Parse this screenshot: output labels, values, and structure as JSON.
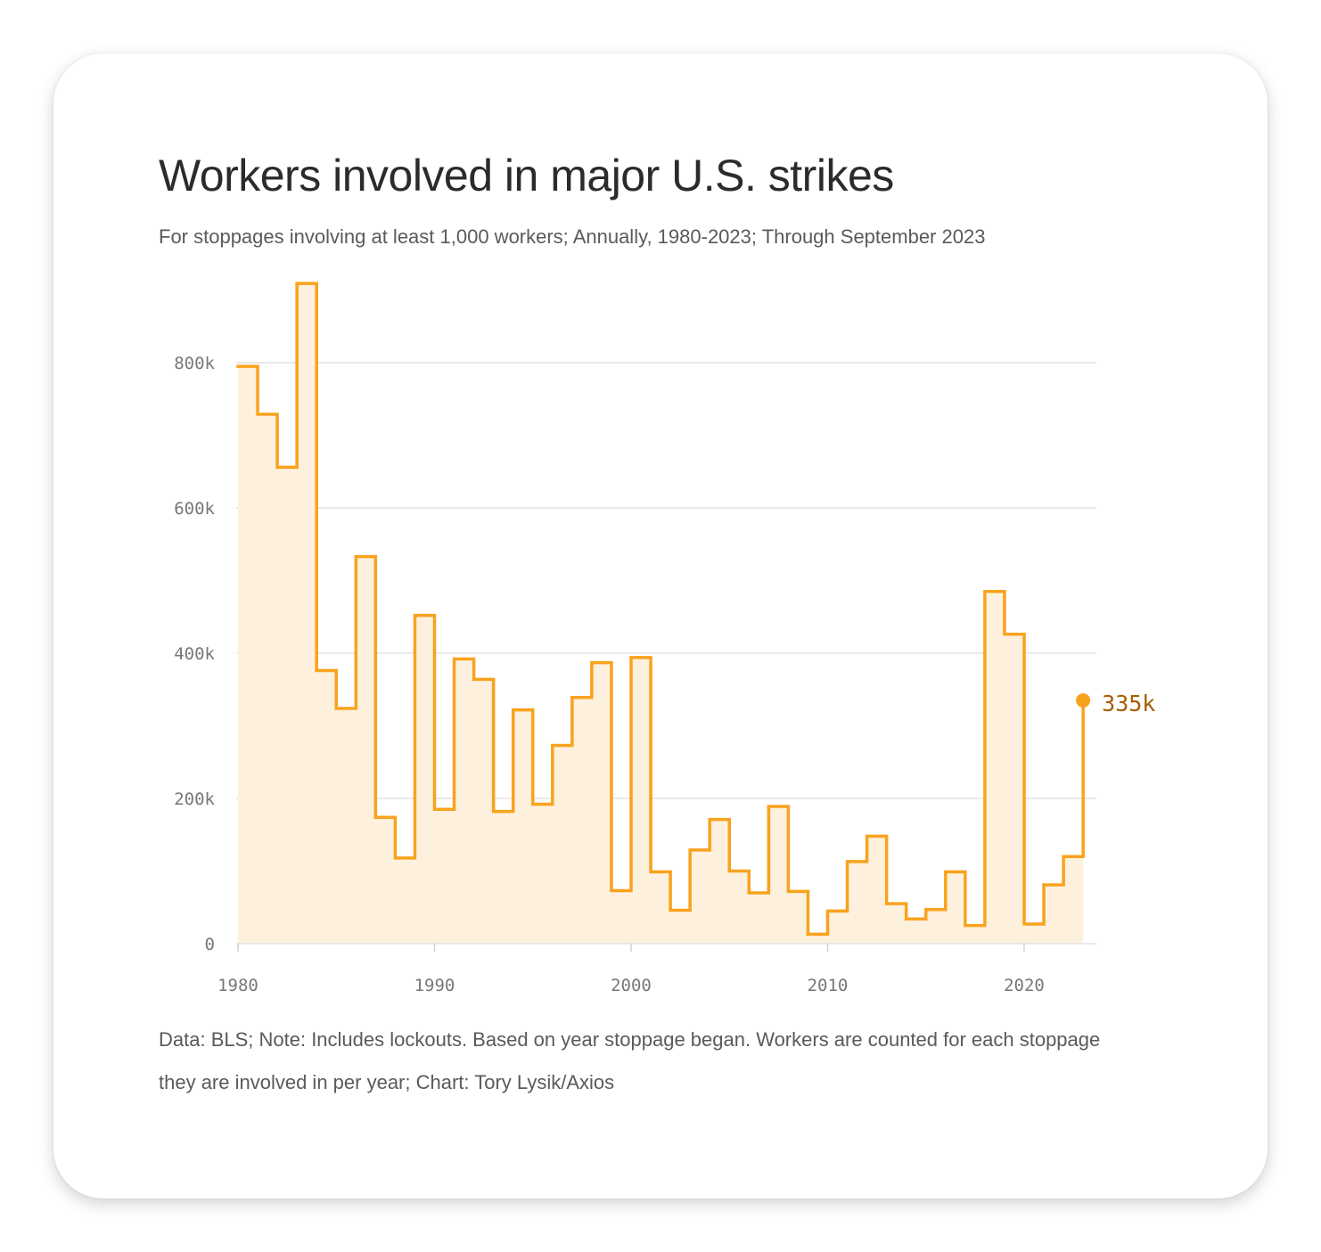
{
  "card": {
    "title": "Workers involved in major U.S. strikes",
    "subtitle": "For stoppages involving at least 1,000 workers; Annually, 1980-2023; Through September 2023",
    "footnote": "Data: BLS; Note: Includes lockouts. Based on year stoppage began. Workers are counted for each stoppage they are involved in per year; Chart: Tory Lysik/Axios"
  },
  "chart_data": {
    "type": "area",
    "step": true,
    "title": "Workers involved in major U.S. strikes",
    "subtitle": "For stoppages involving at least 1,000 workers; Annually, 1980-2023; Through September 2023",
    "xlabel": "",
    "ylabel": "",
    "x": [
      1980,
      1981,
      1982,
      1983,
      1984,
      1985,
      1986,
      1987,
      1988,
      1989,
      1990,
      1991,
      1992,
      1993,
      1994,
      1995,
      1996,
      1997,
      1998,
      1999,
      2000,
      2001,
      2002,
      2003,
      2004,
      2005,
      2006,
      2007,
      2008,
      2009,
      2010,
      2011,
      2012,
      2013,
      2014,
      2015,
      2016,
      2017,
      2018,
      2019,
      2020,
      2021,
      2022,
      2023
    ],
    "series": [
      {
        "values": [
          795000,
          729000,
          656000,
          909000,
          376000,
          324000,
          533000,
          174000,
          118000,
          452000,
          185000,
          392000,
          364000,
          182000,
          322000,
          192000,
          273000,
          339000,
          387000,
          73000,
          394000,
          99000,
          46000,
          129000,
          171000,
          100000,
          70000,
          189000,
          72000,
          13000,
          45000,
          113000,
          148000,
          55000,
          34000,
          47000,
          99000,
          25000,
          485000,
          426000,
          27000,
          81000,
          120000,
          335000
        ]
      }
    ],
    "xlim": [
      1980,
      2024
    ],
    "ylim": [
      0,
      910000
    ],
    "x_ticks": [
      "1980",
      "1990",
      "2000",
      "2010",
      "2020"
    ],
    "y_ticks": [
      "0",
      "200k",
      "400k",
      "600k",
      "800k"
    ],
    "grid": true,
    "last_value_label": "335k",
    "colors": {
      "line": "#f9a21e",
      "fill": "#fdf1dd",
      "grid": "#e4e4e4",
      "label": "#a65d00"
    }
  }
}
